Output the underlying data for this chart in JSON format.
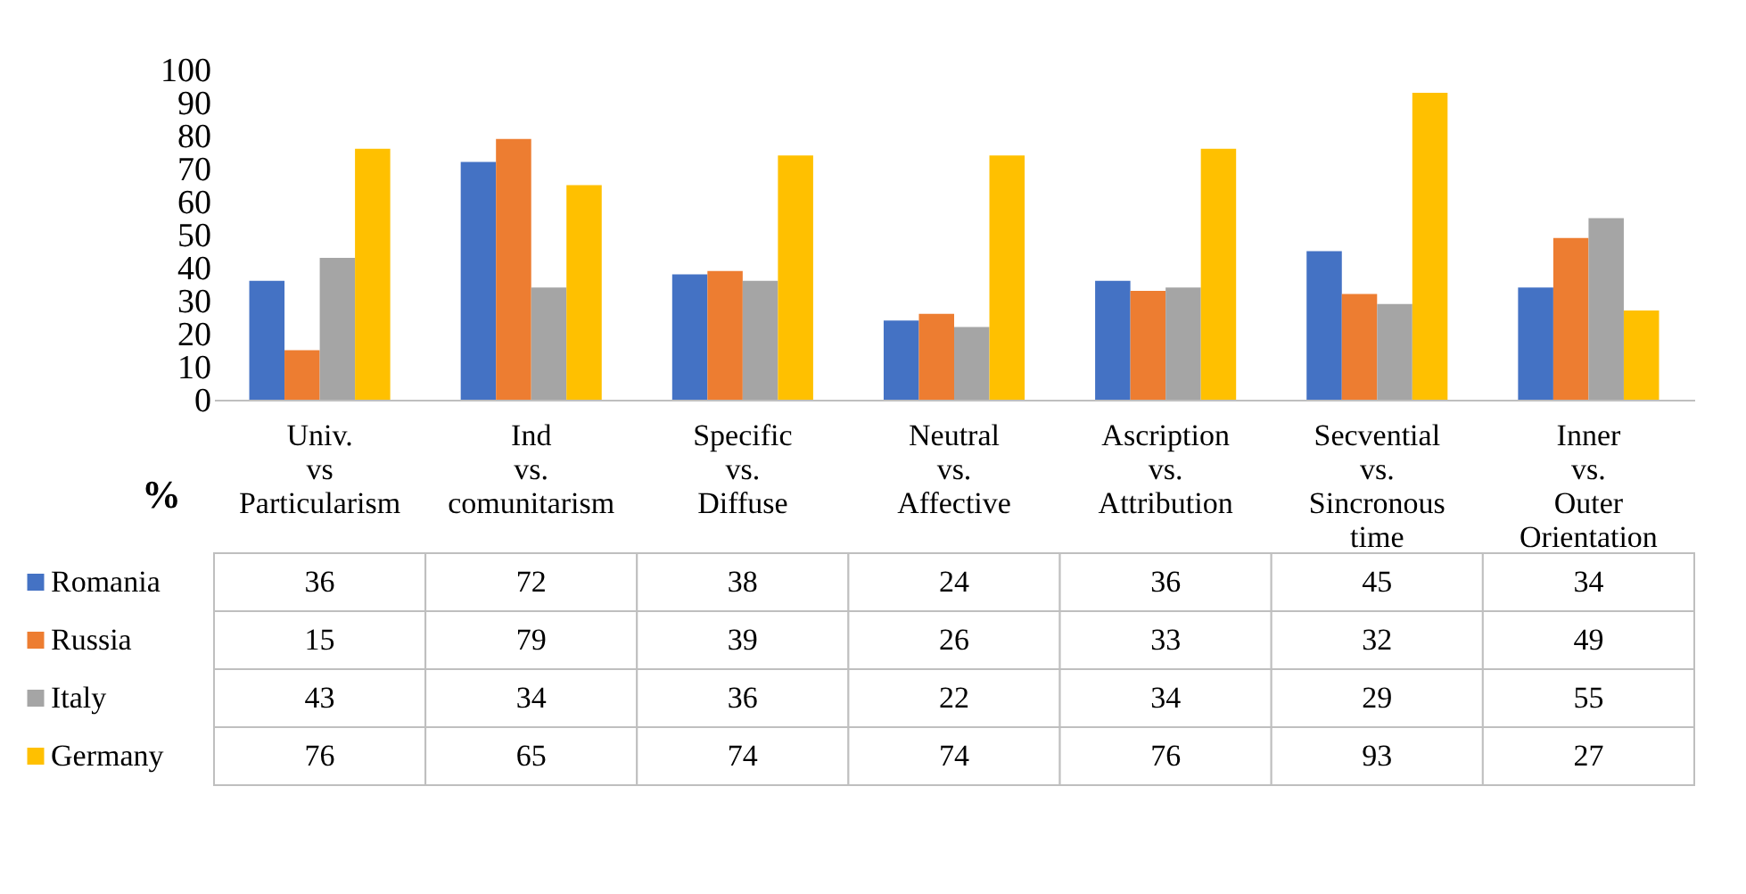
{
  "chart_data": {
    "type": "bar",
    "ylabel": "%",
    "categories": [
      "Univ. vs Particularism",
      "Ind vs. comunitarism",
      "Specific vs. Diffuse",
      "Neutral vs. Affective",
      "Ascription vs. Attribution",
      "Secvential vs. Sincronous time",
      "Inner vs. Outer Orientation"
    ],
    "series": [
      {
        "name": "Romania",
        "color": "#4472c4",
        "values": [
          36,
          72,
          38,
          24,
          36,
          45,
          34
        ]
      },
      {
        "name": "Russia",
        "color": "#ed7d31",
        "values": [
          15,
          79,
          39,
          26,
          33,
          32,
          49
        ]
      },
      {
        "name": "Italy",
        "color": "#a5a5a5",
        "values": [
          43,
          34,
          36,
          22,
          34,
          29,
          55
        ]
      },
      {
        "name": "Germany",
        "color": "#ffc000",
        "values": [
          76,
          65,
          74,
          74,
          76,
          93,
          27
        ]
      }
    ],
    "ylim": [
      0,
      100
    ],
    "yticks": [
      0,
      10,
      20,
      30,
      40,
      50,
      60,
      70,
      80,
      90,
      100
    ],
    "grid": false,
    "data_labels": true,
    "legend": "bottom left"
  }
}
